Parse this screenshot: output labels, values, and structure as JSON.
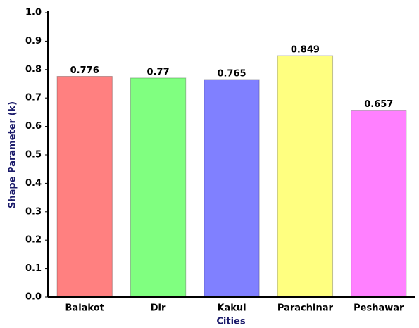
{
  "chart_data": {
    "type": "bar",
    "x_label": "Cities",
    "y_label": "Shape Parameter (k)",
    "categories": [
      "Balakot",
      "Dir",
      "Kakul",
      "Parachinar",
      "Peshawar"
    ],
    "values": [
      0.776,
      0.77,
      0.765,
      0.849,
      0.657
    ],
    "colors": [
      "#ff8080",
      "#80ff80",
      "#8080ff",
      "#ffff80",
      "#ff80ff"
    ],
    "ylim": [
      0,
      1
    ],
    "yticks": [
      {
        "value": 0,
        "label": "0.0"
      },
      0.1,
      0.2,
      0.3,
      0.4,
      0.5,
      0.6,
      0.7,
      0.8,
      0.9,
      {
        "value": 1,
        "label": "1.0"
      }
    ],
    "grid": false
  }
}
